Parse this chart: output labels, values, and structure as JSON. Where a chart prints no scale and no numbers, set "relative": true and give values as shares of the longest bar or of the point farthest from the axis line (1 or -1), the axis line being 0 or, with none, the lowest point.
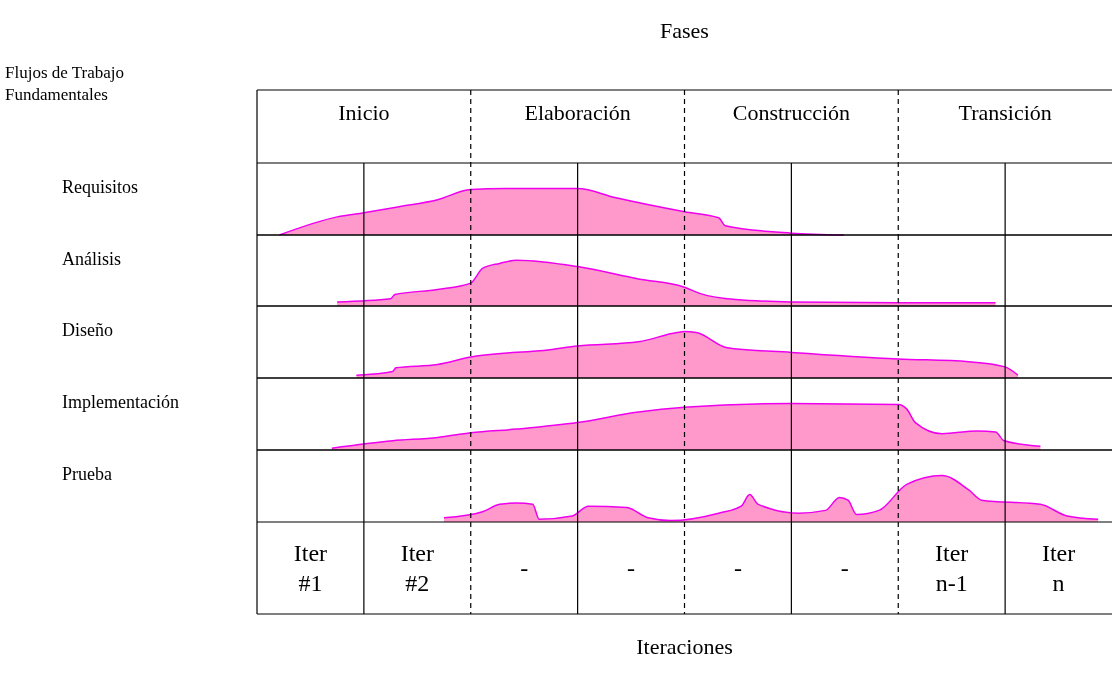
{
  "chart_data": [
    {
      "type": "area",
      "ylabel": "Requisitos",
      "relative": true,
      "xlim": [
        0,
        8
      ],
      "tick_labels": false,
      "title": "Fases",
      "annotations": [
        "Flujos de Trabajo Fundamentales",
        "Inicio",
        "Elaboración",
        "Construcción",
        "Transición"
      ],
      "ref_lines": [
        {
          "axis": "x",
          "value": 1,
          "line_style": "solid"
        },
        {
          "axis": "x",
          "value": 2,
          "line_style": "dashed"
        },
        {
          "axis": "x",
          "value": 3,
          "line_style": "solid"
        },
        {
          "axis": "x",
          "value": 4,
          "line_style": "dashed"
        },
        {
          "axis": "x",
          "value": 5,
          "line_style": "solid"
        },
        {
          "axis": "x",
          "value": 6,
          "line_style": "dashed"
        },
        {
          "axis": "x",
          "value": 7,
          "line_style": "solid"
        }
      ],
      "series": [
        {
          "color": "#ff99cc",
          "x": [
            0.21,
            0.75,
            1.0,
            1.33,
            1.69,
            2.0,
            2.32,
            3.0,
            3.36,
            4.0,
            4.32,
            4.38,
            5.0,
            5.49
          ],
          "values": [
            0,
            0.39,
            0.48,
            0.61,
            0.76,
            0.98,
            1,
            1,
            0.8,
            0.5,
            0.37,
            0.2,
            0.04,
            0
          ]
        }
      ]
    },
    {
      "type": "area",
      "ylabel": "Análisis",
      "relative": true,
      "xlim": [
        0,
        8
      ],
      "tick_labels": false,
      "ref_lines": [
        {
          "axis": "x",
          "value": 1,
          "line_style": "solid"
        },
        {
          "axis": "x",
          "value": 2,
          "line_style": "dashed"
        },
        {
          "axis": "x",
          "value": 3,
          "line_style": "solid"
        },
        {
          "axis": "x",
          "value": 4,
          "line_style": "dashed"
        },
        {
          "axis": "x",
          "value": 5,
          "line_style": "solid"
        },
        {
          "axis": "x",
          "value": 6,
          "line_style": "dashed"
        },
        {
          "axis": "x",
          "value": 7,
          "line_style": "solid"
        }
      ],
      "series": [
        {
          "color": "#ff99cc",
          "x": [
            0.75,
            1.25,
            1.29,
            1.69,
            2.0,
            2.11,
            2.27,
            2.43,
            3.0,
            3.57,
            4.0,
            4.15,
            4.48,
            5.0,
            6.0,
            6.91
          ],
          "values": [
            0.09,
            0.16,
            0.25,
            0.36,
            0.5,
            0.82,
            0.93,
            1,
            0.86,
            0.59,
            0.41,
            0.27,
            0.14,
            0.09,
            0.07,
            0.07
          ]
        }
      ]
    },
    {
      "type": "area",
      "ylabel": "Diseño",
      "relative": true,
      "xlim": [
        0,
        8
      ],
      "tick_labels": false,
      "ref_lines": [
        {
          "axis": "x",
          "value": 1,
          "line_style": "solid"
        },
        {
          "axis": "x",
          "value": 2,
          "line_style": "dashed"
        },
        {
          "axis": "x",
          "value": 3,
          "line_style": "solid"
        },
        {
          "axis": "x",
          "value": 4,
          "line_style": "dashed"
        },
        {
          "axis": "x",
          "value": 5,
          "line_style": "solid"
        },
        {
          "axis": "x",
          "value": 6,
          "line_style": "dashed"
        },
        {
          "axis": "x",
          "value": 7,
          "line_style": "solid"
        }
      ],
      "series": [
        {
          "color": "#ff99cc",
          "x": [
            0.93,
            1.27,
            1.3,
            1.69,
            2.0,
            2.74,
            3.0,
            3.57,
            3.93,
            4.0,
            4.11,
            4.4,
            5.0,
            6.0,
            6.66,
            7.0,
            7.12
          ],
          "values": [
            0.06,
            0.14,
            0.22,
            0.29,
            0.45,
            0.61,
            0.69,
            0.78,
            0.98,
            1,
            0.98,
            0.65,
            0.55,
            0.41,
            0.35,
            0.24,
            0.06
          ]
        }
      ]
    },
    {
      "type": "area",
      "ylabel": "Implementación",
      "relative": true,
      "xlim": [
        0,
        8
      ],
      "tick_labels": false,
      "ref_lines": [
        {
          "axis": "x",
          "value": 1,
          "line_style": "solid"
        },
        {
          "axis": "x",
          "value": 2,
          "line_style": "dashed"
        },
        {
          "axis": "x",
          "value": 3,
          "line_style": "solid"
        },
        {
          "axis": "x",
          "value": 4,
          "line_style": "dashed"
        },
        {
          "axis": "x",
          "value": 5,
          "line_style": "solid"
        },
        {
          "axis": "x",
          "value": 6,
          "line_style": "dashed"
        },
        {
          "axis": "x",
          "value": 7,
          "line_style": "solid"
        }
      ],
      "series": [
        {
          "color": "#ff99cc",
          "x": [
            0.7,
            1.27,
            1.69,
            2.0,
            2.43,
            3.0,
            3.57,
            4.0,
            5.0,
            6.0,
            6.08,
            6.16,
            6.41,
            6.74,
            6.91,
            6.99,
            7.33
          ],
          "values": [
            0.04,
            0.2,
            0.27,
            0.37,
            0.45,
            0.59,
            0.82,
            0.92,
            1,
            0.98,
            0.88,
            0.59,
            0.35,
            0.41,
            0.39,
            0.2,
            0.08
          ]
        }
      ]
    },
    {
      "type": "area",
      "ylabel": "Prueba",
      "relative": true,
      "xlim": [
        0,
        8
      ],
      "tick_labels": "x",
      "xlabel": "Iteraciones",
      "xticks": [
        {
          "value": 0.5,
          "label": "Iter #1"
        },
        {
          "value": 1.5,
          "label": "Iter #2"
        },
        {
          "value": 2.5,
          "label": "-"
        },
        {
          "value": 3.5,
          "label": "-"
        },
        {
          "value": 4.5,
          "label": "-"
        },
        {
          "value": 5.5,
          "label": "-"
        },
        {
          "value": 6.5,
          "label": "Iter n-1"
        },
        {
          "value": 7.5,
          "label": "Iter n"
        }
      ],
      "ref_lines": [
        {
          "axis": "x",
          "value": 1,
          "line_style": "solid"
        },
        {
          "axis": "x",
          "value": 2,
          "line_style": "dashed"
        },
        {
          "axis": "x",
          "value": 3,
          "line_style": "solid"
        },
        {
          "axis": "x",
          "value": 4,
          "line_style": "dashed"
        },
        {
          "axis": "x",
          "value": 5,
          "line_style": "solid"
        },
        {
          "axis": "x",
          "value": 6,
          "line_style": "dashed"
        },
        {
          "axis": "x",
          "value": 7,
          "line_style": "solid"
        }
      ],
      "series": [
        {
          "color": "#ff99cc",
          "x": [
            1.75,
            2.11,
            2.27,
            2.43,
            2.58,
            2.64,
            2.95,
            3.1,
            3.46,
            3.66,
            3.87,
            4.32,
            4.53,
            4.61,
            4.69,
            5.07,
            5.32,
            5.45,
            5.53,
            5.61,
            5.82,
            6.08,
            6.41,
            6.66,
            6.78,
            7.33,
            7.58,
            7.87
          ],
          "values": [
            0.09,
            0.22,
            0.38,
            0.41,
            0.38,
            0.06,
            0.13,
            0.34,
            0.31,
            0.09,
            0.03,
            0.19,
            0.34,
            0.59,
            0.38,
            0.19,
            0.25,
            0.53,
            0.47,
            0.16,
            0.25,
            0.81,
            1,
            0.69,
            0.47,
            0.38,
            0.13,
            0.06
          ]
        }
      ]
    }
  ]
}
